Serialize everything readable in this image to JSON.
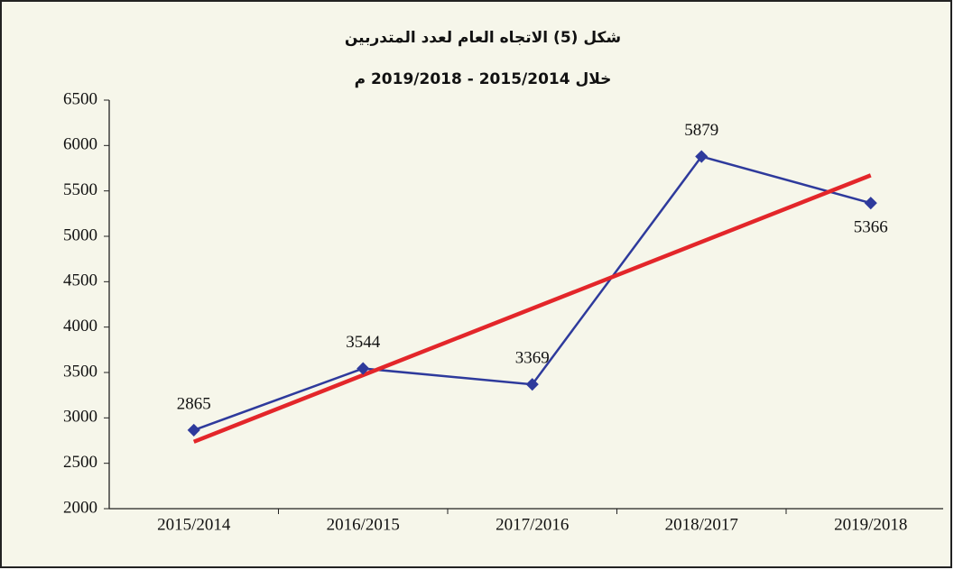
{
  "chart_data": {
    "type": "line",
    "title": "شكل (5) الاتجاه العام لعدد المتدربين",
    "subtitle": "خلال 2015/2014 - 2019/2018 م",
    "categories": [
      "2015/2014",
      "2016/2015",
      "2017/2016",
      "2018/2017",
      "2019/2018"
    ],
    "series": [
      {
        "color": "#2e3a9c",
        "values": [
          2865,
          3544,
          3369,
          5879,
          5366
        ]
      }
    ],
    "trendline": true,
    "trend_color": "#e3262a",
    "ylim": [
      2000,
      6500
    ],
    "yticks": [
      2000,
      2500,
      3000,
      3500,
      4000,
      4500,
      5000,
      5500,
      6000,
      6500
    ]
  }
}
